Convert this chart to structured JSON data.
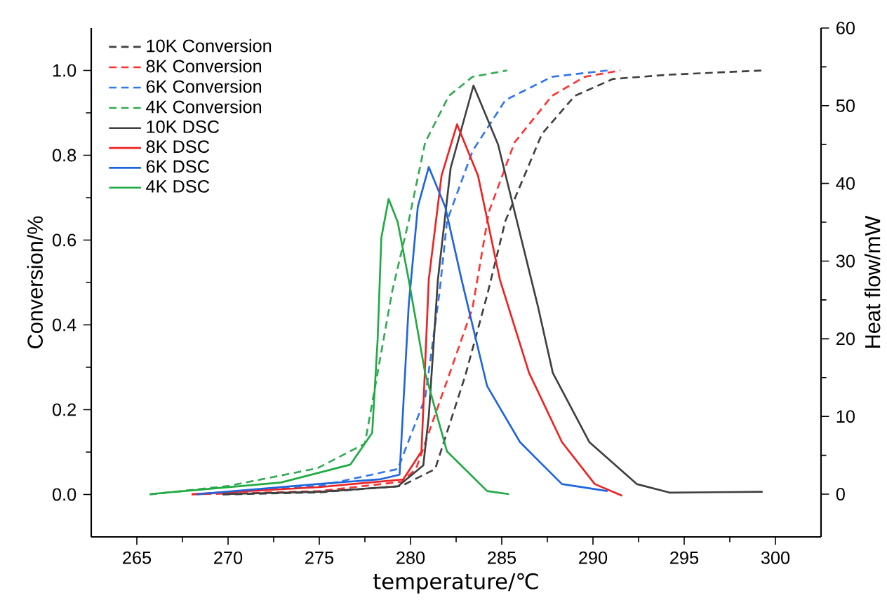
{
  "chart_data": {
    "type": "line",
    "xlabel": "temperature/℃",
    "ylabel": "Conversion/%",
    "y2label": "Heat flow/mW",
    "xlim": [
      262.5,
      302.5
    ],
    "xticks": [
      265,
      270,
      275,
      280,
      285,
      290,
      295,
      300
    ],
    "ylim": [
      -0.1,
      1.1
    ],
    "yticks": [
      {
        "value": 0,
        "label": "0.0"
      },
      0.2,
      0.4,
      0.6,
      0.8,
      {
        "value": 1,
        "label": "1.0"
      }
    ],
    "y2lim": [
      -5.5,
      60
    ],
    "y2ticks": [
      0,
      10,
      20,
      30,
      40,
      50,
      60
    ],
    "legend": "top left",
    "grid": false,
    "marker": "none",
    "series": [
      {
        "name": "10K Conversion",
        "color": "#404040",
        "line_style": "dashed",
        "x": [
          269.7,
          275,
          279.5,
          281.35,
          283.0,
          284.2,
          285.2,
          287.2,
          289.0,
          291.1,
          294.2,
          299.3
        ],
        "values": [
          0,
          0.005,
          0.02,
          0.06,
          0.28,
          0.47,
          0.645,
          0.85,
          0.94,
          0.98,
          0.99,
          1.0
        ]
      },
      {
        "name": "8K Conversion",
        "color": "#ff3333",
        "line_style": "dashed",
        "x": [
          268.0,
          275,
          279.5,
          280.3,
          282.1,
          283.4,
          284.3,
          285.7,
          287.75,
          289.55,
          291.5
        ],
        "values": [
          0,
          0.008,
          0.03,
          0.06,
          0.28,
          0.44,
          0.667,
          0.83,
          0.94,
          0.985,
          1.0
        ]
      },
      {
        "name": "6K Conversion",
        "color": "#3377ee",
        "line_style": "dashed",
        "x": [
          268.3,
          275,
          279.3,
          280.8,
          281.6,
          282.0,
          283.4,
          285.2,
          287.75,
          290.8
        ],
        "values": [
          0,
          0.02,
          0.06,
          0.227,
          0.48,
          0.645,
          0.81,
          0.93,
          0.985,
          1.0
        ]
      },
      {
        "name": "4K Conversion",
        "color": "#33aa55",
        "line_style": "dashed",
        "x": [
          265.7,
          270,
          274.9,
          277.5,
          279.0,
          279.9,
          280.8,
          282.1,
          283.4,
          285.3
        ],
        "values": [
          0,
          0.02,
          0.062,
          0.12,
          0.48,
          0.645,
          0.83,
          0.94,
          0.985,
          1.0
        ]
      },
      {
        "name": "10K DSC",
        "color": "#404040",
        "line_style": "solid",
        "axis": "y2",
        "x": [
          269.7,
          275,
          279.3,
          280.7,
          281.0,
          281.5,
          282.2,
          283.45,
          284.8,
          287.0,
          287.8,
          289.8,
          292.4,
          294.2,
          299.3
        ],
        "values": [
          0,
          0.3,
          1.0,
          3.7,
          10,
          27.6,
          42,
          52.6,
          45,
          24,
          15.6,
          6.7,
          1.3,
          0.2,
          0.3
        ]
      },
      {
        "name": "8K DSC",
        "color": "#ee2222",
        "line_style": "solid",
        "axis": "y2",
        "x": [
          268.0,
          275,
          279.6,
          280.6,
          281.0,
          281.7,
          282.55,
          283.7,
          284.9,
          286.5,
          288.3,
          290.1,
          291.6
        ],
        "values": [
          0,
          0.9,
          1.9,
          5.5,
          27.6,
          41,
          47.6,
          41,
          27.6,
          15.6,
          6.7,
          1.3,
          -0.2
        ]
      },
      {
        "name": "6K DSC",
        "color": "#1f66dd",
        "line_style": "solid",
        "axis": "y2",
        "x": [
          268.3,
          274.9,
          278.3,
          279.4,
          279.9,
          280.4,
          281.0,
          281.9,
          282.8,
          284.2,
          286.0,
          288.3,
          290.8
        ],
        "values": [
          0,
          1.3,
          1.9,
          2.5,
          24.3,
          37,
          42.1,
          37,
          27.6,
          13.9,
          6.7,
          1.3,
          0.4
        ]
      },
      {
        "name": "4K DSC",
        "color": "#22aa44",
        "line_style": "solid",
        "axis": "y2",
        "x": [
          265.7,
          272.9,
          276.7,
          277.9,
          278.2,
          278.4,
          278.8,
          279.3,
          279.9,
          280.8,
          282.0,
          284.2,
          285.4
        ],
        "values": [
          0,
          1.5,
          3.8,
          7.9,
          20,
          33,
          38,
          35,
          27.6,
          15.6,
          5.5,
          0.4,
          0
        ]
      }
    ]
  }
}
